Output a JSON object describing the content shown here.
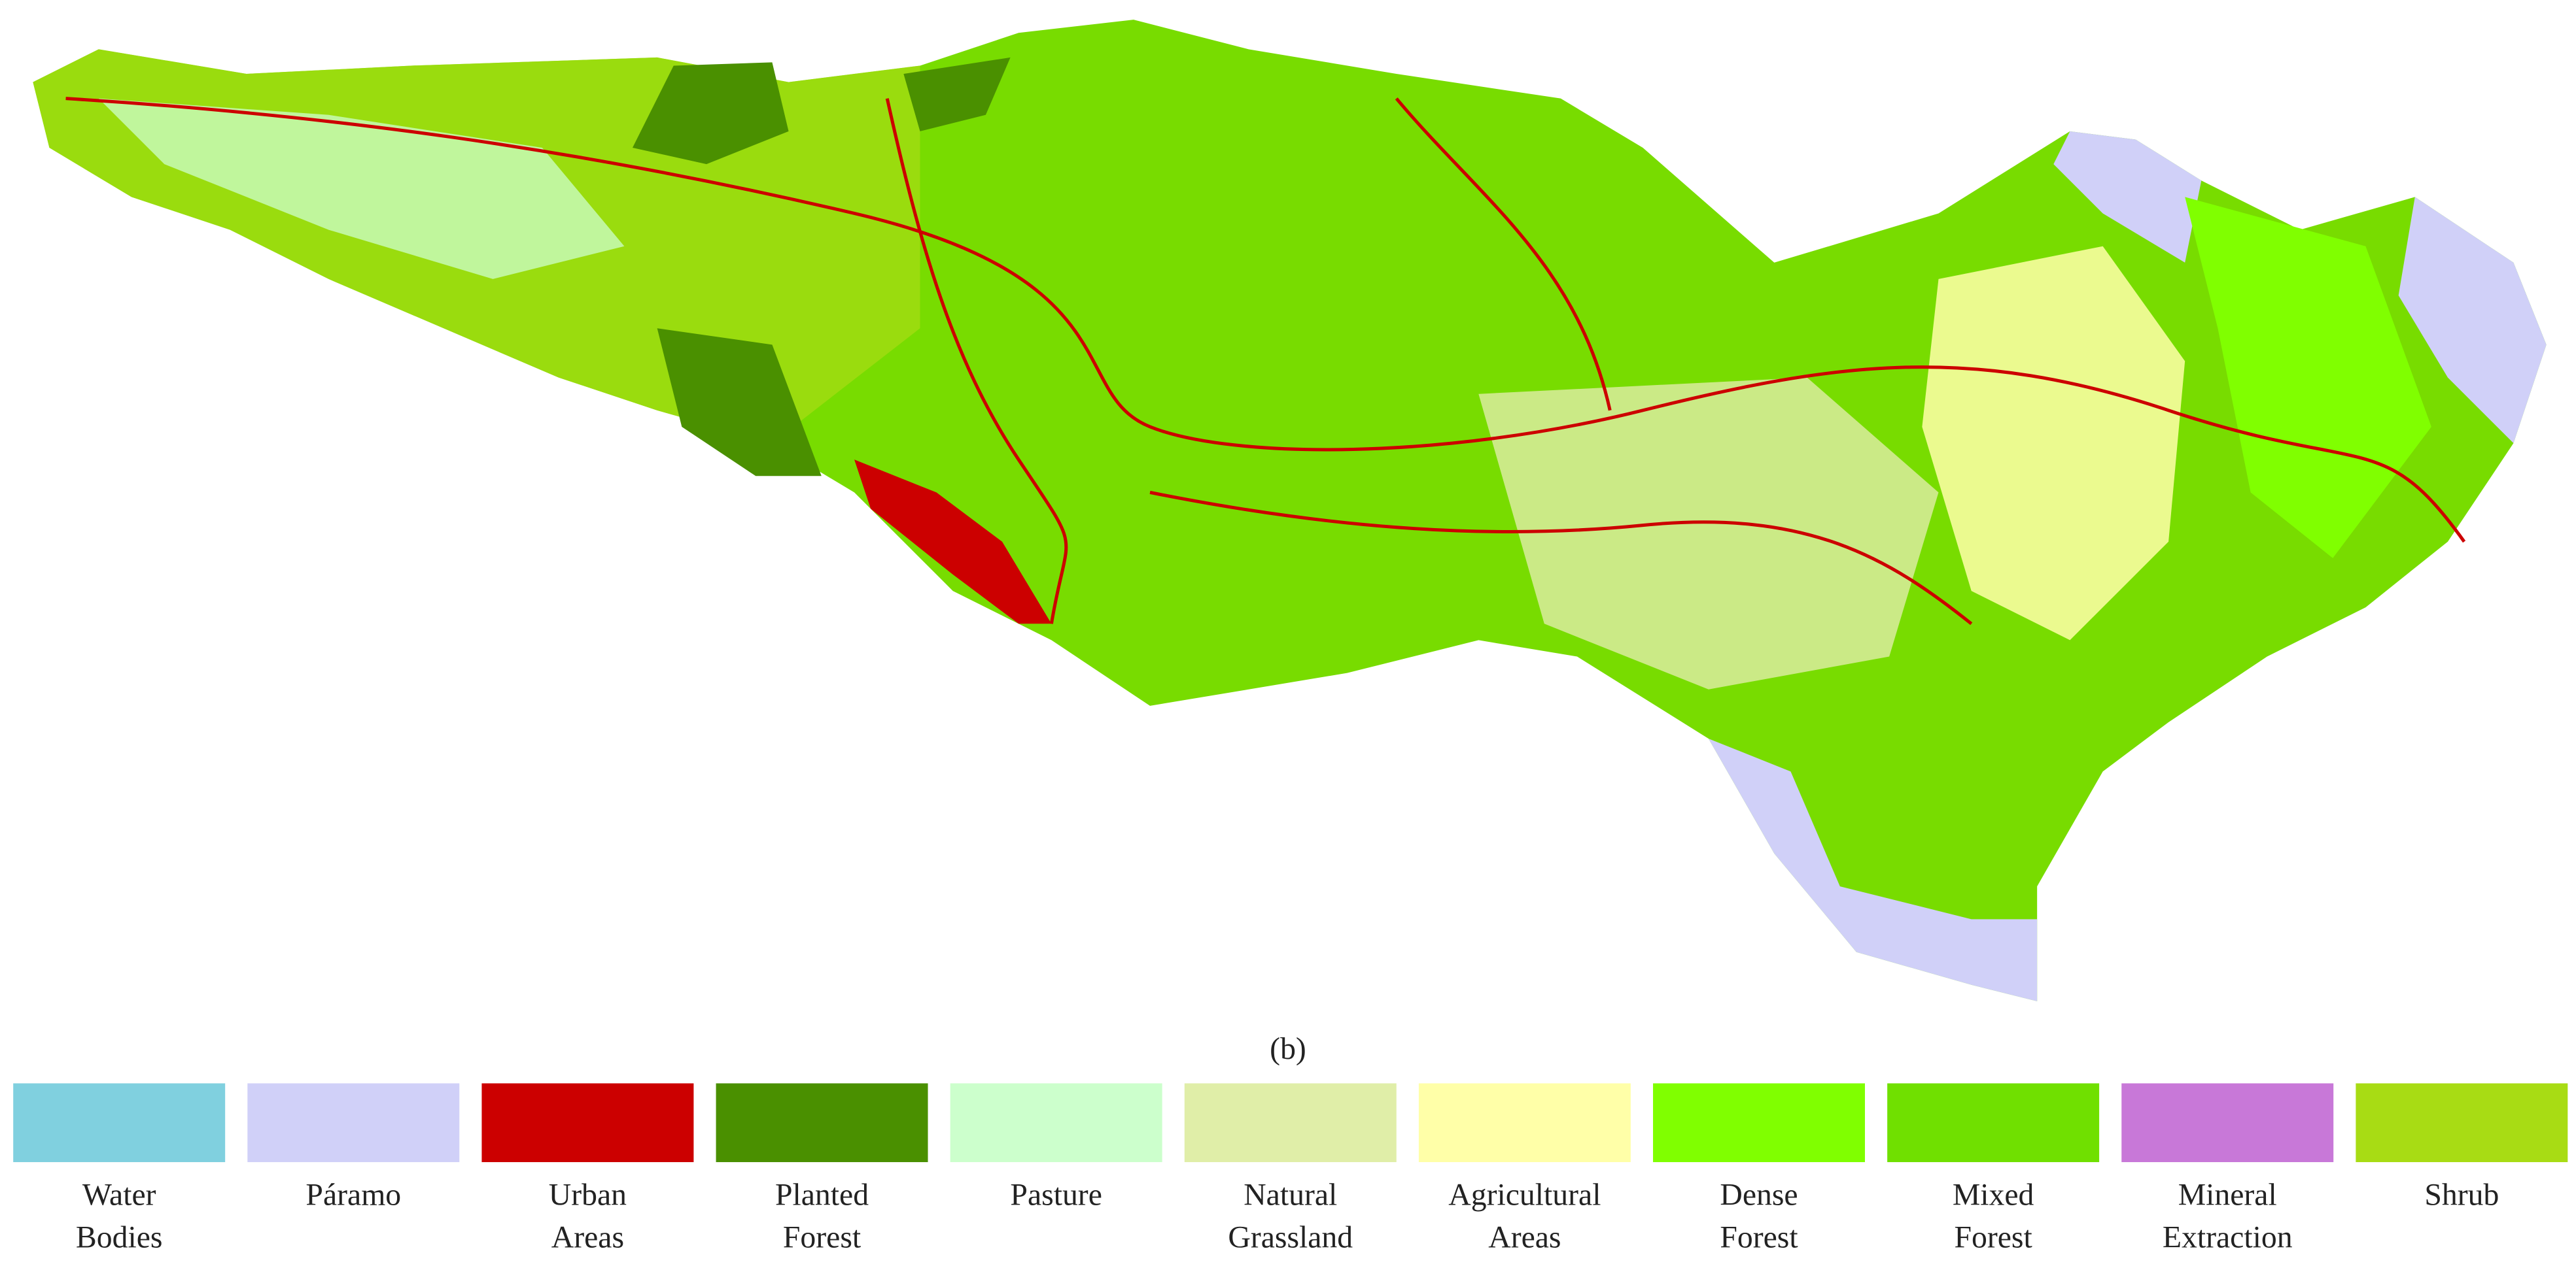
{
  "figure": {
    "panel_label": "(b)",
    "legend": [
      {
        "label": [
          "Water",
          "Bodies"
        ],
        "color": "#80d0df"
      },
      {
        "label": [
          "Páramo"
        ],
        "color": "#d0d0f8"
      },
      {
        "label": [
          "Urban",
          "Areas"
        ],
        "color": "#cc0000"
      },
      {
        "label": [
          "Planted",
          "Forest"
        ],
        "color": "#4a9000"
      },
      {
        "label": [
          "Pasture"
        ],
        "color": "#ccffcc"
      },
      {
        "label": [
          "Natural",
          "Grassland"
        ],
        "color": "#e0eea8"
      },
      {
        "label": [
          "Agricultural",
          "Areas"
        ],
        "color": "#ffffa8"
      },
      {
        "label": [
          "Dense",
          "Forest"
        ],
        "color": "#80ff00"
      },
      {
        "label": [
          "Mixed",
          "Forest"
        ],
        "color": "#70e000"
      },
      {
        "label": [
          "Mineral",
          "Extraction"
        ],
        "color": "#c878d8"
      },
      {
        "label": [
          "Shrub"
        ],
        "color": "#a8dc14"
      }
    ]
  }
}
